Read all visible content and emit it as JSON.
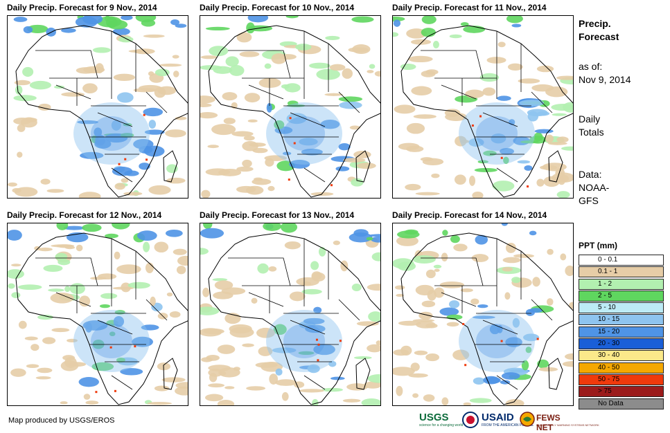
{
  "panels": [
    {
      "title": "Daily Precip. Forecast for 9 Nov., 2014"
    },
    {
      "title": "Daily Precip. Forecast for 10 Nov., 2014"
    },
    {
      "title": "Daily Precip. Forecast for 11 Nov., 2014"
    },
    {
      "title": "Daily Precip. Forecast for 12 Nov., 2014"
    },
    {
      "title": "Daily Precip. Forecast for 13 Nov., 2014"
    },
    {
      "title": "Daily Precip. Forecast for 14 Nov., 2014"
    }
  ],
  "side": {
    "title_line1": "Precip.",
    "title_line2": "Forecast",
    "asof_label": "as of:",
    "asof_date": "Nov 9, 2014",
    "daily_line1": "Daily",
    "daily_line2": "Totals",
    "data_label": "Data:",
    "data_line1": "NOAA-",
    "data_line2": "GFS"
  },
  "legend": {
    "title": "PPT (mm)",
    "items": [
      {
        "label": "0 - 0.1",
        "color": "#ffffff"
      },
      {
        "label": "0.1 - 1",
        "color": "#e6cda7"
      },
      {
        "label": "1 - 2",
        "color": "#b2f0b0"
      },
      {
        "label": "2 - 5",
        "color": "#5fd65f"
      },
      {
        "label": "5 - 10",
        "color": "#bdebf5"
      },
      {
        "label": "10 - 15",
        "color": "#8ec4ef"
      },
      {
        "label": "15 - 20",
        "color": "#4f94e6"
      },
      {
        "label": "20 - 30",
        "color": "#1a5fd8"
      },
      {
        "label": "30 - 40",
        "color": "#fbe98a"
      },
      {
        "label": "40 - 50",
        "color": "#f5a800"
      },
      {
        "label": "50 - 75",
        "color": "#ef3a0c"
      },
      {
        "label": "> 75",
        "color": "#9b1b1b"
      },
      {
        "label": "No Data",
        "color": "#8c8c8c"
      }
    ]
  },
  "credit": "Map produced by USGS/EROS",
  "logos": {
    "usgs": "USGS",
    "usgs_tag": "science for a changing world",
    "usaid": "USAID",
    "usaid_tag": "FROM THE AMERICAN PEOPLE",
    "fews": "FEWS NET",
    "fews_tag": "FAMINE EARLY WARNING SYSTEMS NETWORK"
  }
}
